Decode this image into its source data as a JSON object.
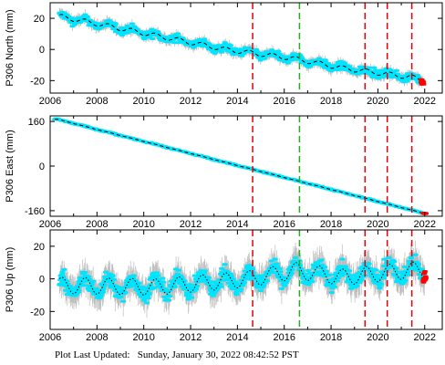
{
  "footer_text": "Plot Last Updated:   Sunday, January 30, 2022 08:42:52 PST",
  "colors": {
    "observed": "#00e5ff",
    "error_bars": "#bdbdbd",
    "model": "#000000",
    "recent": "#ff0000",
    "event_red": "#e8000b",
    "event_green": "#1bb21b"
  },
  "chart_data": [
    {
      "type": "scatter",
      "ylabel": "P306 North (mm)",
      "xlim": [
        2006.0,
        2022.75
      ],
      "ylim": [
        -28,
        30
      ],
      "xticks": [
        2006,
        2008,
        2010,
        2012,
        2014,
        2016,
        2018,
        2020,
        2022
      ],
      "yticks": [
        20,
        0,
        -20
      ],
      "grid": false,
      "vlines_red": [
        2014.65,
        2019.45,
        2020.4,
        2021.45
      ],
      "vlines_green": [
        2016.65
      ],
      "series": [
        {
          "values_x": [
            2006.5,
            2007.5,
            2008.5,
            2009.5,
            2010.5,
            2011.5,
            2012.5,
            2013.5,
            2014.5,
            2015.5,
            2016.5,
            2017.5,
            2018.5,
            2019.5,
            2020.5,
            2021.5,
            2021.9
          ],
          "values_y": [
            21,
            18,
            15,
            12,
            9,
            6,
            3,
            0,
            -2,
            -4,
            -6,
            -9,
            -12,
            -14,
            -16,
            -18,
            -20
          ],
          "seasonal_amplitude": 1.5,
          "scatter": 2.5,
          "error_bar": 3
        }
      ]
    },
    {
      "type": "scatter",
      "ylabel": "P306 East (mm)",
      "xlim": [
        2006.0,
        2022.75
      ],
      "ylim": [
        -180,
        180
      ],
      "xticks": [
        2006,
        2008,
        2010,
        2012,
        2014,
        2016,
        2018,
        2020,
        2022
      ],
      "yticks": [
        160,
        0,
        -160
      ],
      "grid": false,
      "vlines_red": [
        2014.65,
        2019.45,
        2020.4,
        2021.45
      ],
      "vlines_green": [
        2016.65
      ],
      "series": [
        {
          "values_x": [
            2006.3,
            2022.0
          ],
          "values_y": [
            168,
            -170
          ],
          "seasonal_amplitude": 0.5,
          "scatter": 2,
          "error_bar": 3
        }
      ]
    },
    {
      "type": "scatter",
      "ylabel": "P306 Up (mm)",
      "xlim": [
        2006.0,
        2022.75
      ],
      "ylim": [
        -31,
        30
      ],
      "xticks": [
        2006,
        2008,
        2010,
        2012,
        2014,
        2016,
        2018,
        2020,
        2022
      ],
      "yticks": [
        20,
        0,
        -20
      ],
      "grid": false,
      "vlines_red": [
        2014.65,
        2019.45,
        2020.4,
        2021.45
      ],
      "vlines_green": [
        2016.65
      ],
      "series": [
        {
          "values_x": [
            2006.5,
            2010.5,
            2014.5,
            2016.5,
            2018.5,
            2020.5,
            2022.0
          ],
          "values_y": [
            -4,
            -5,
            0,
            5,
            1,
            4,
            6
          ],
          "seasonal_amplitude": 5,
          "scatter": 5,
          "error_bar": 8
        }
      ]
    }
  ]
}
